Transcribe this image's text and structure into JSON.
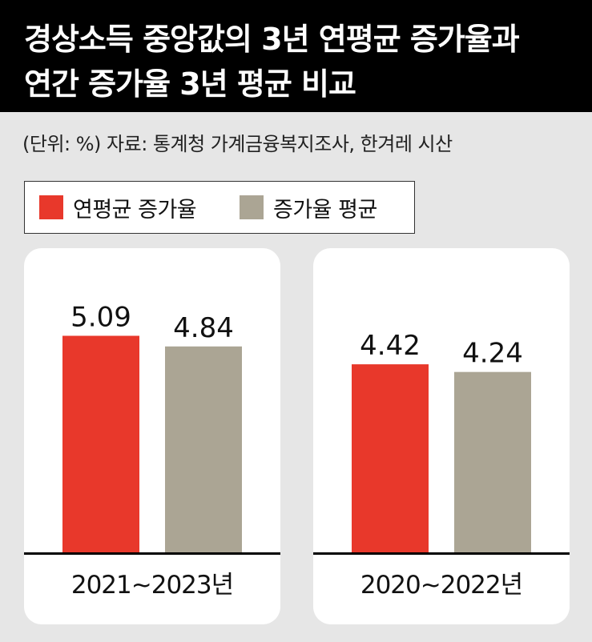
{
  "title": [
    "경상소득 중앙값의 3년 연평균 증가율과",
    "연간 증가율 3년 평균 비교"
  ],
  "source_note": "(단위: %)  자료: 통계청 가계금융복지조사, 한겨레 시산",
  "colors": {
    "series_a": "#e8382b",
    "series_b": "#aba594"
  },
  "chart_data": {
    "type": "bar",
    "unit": "%",
    "legend": [
      "연평균 증가율",
      "증가율 평균"
    ],
    "groups": [
      {
        "label": "2021∼2023년",
        "values": [
          5.09,
          4.84
        ],
        "value_labels": [
          "5.09",
          "4.84"
        ]
      },
      {
        "label": "2020∼2022년",
        "values": [
          4.42,
          4.24
        ],
        "value_labels": [
          "4.42",
          "4.24"
        ]
      }
    ],
    "ylim": [
      0,
      7.15
    ],
    "grid": false
  }
}
